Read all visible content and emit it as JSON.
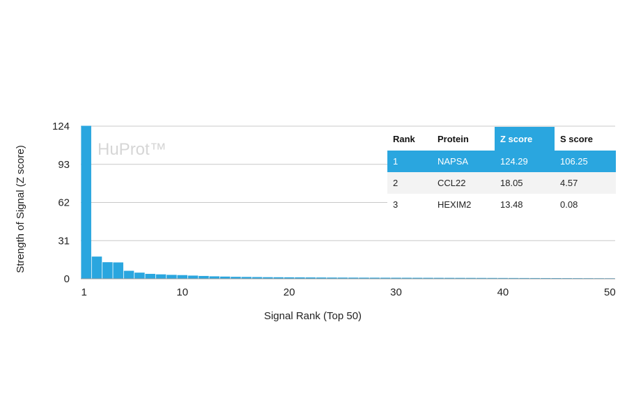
{
  "chart_data": {
    "type": "bar",
    "xlabel": "Signal Rank (Top 50)",
    "ylabel": "Strength of Signal (Z score)",
    "watermark": "HuProt™",
    "ylim": [
      0,
      124
    ],
    "yticks": [
      0,
      31,
      62,
      93,
      124
    ],
    "xticks": [
      1,
      10,
      20,
      30,
      40,
      50
    ],
    "grid": true,
    "bar_color": "#2aa6df",
    "x": [
      1,
      2,
      3,
      4,
      5,
      6,
      7,
      8,
      9,
      10,
      11,
      12,
      13,
      14,
      15,
      16,
      17,
      18,
      19,
      20,
      21,
      22,
      23,
      24,
      25,
      26,
      27,
      28,
      29,
      30,
      31,
      32,
      33,
      34,
      35,
      36,
      37,
      38,
      39,
      40,
      41,
      42,
      43,
      44,
      45,
      46,
      47,
      48,
      49,
      50
    ],
    "values": [
      124.29,
      18.05,
      13.48,
      13.3,
      6.5,
      5.0,
      4.0,
      3.6,
      3.2,
      3.0,
      2.6,
      2.3,
      2.0,
      1.8,
      1.6,
      1.5,
      1.4,
      1.3,
      1.25,
      1.2,
      1.15,
      1.1,
      1.05,
      1.0,
      0.98,
      0.95,
      0.92,
      0.9,
      0.88,
      0.86,
      0.84,
      0.82,
      0.8,
      0.78,
      0.76,
      0.74,
      0.72,
      0.7,
      0.68,
      0.66,
      0.64,
      0.62,
      0.6,
      0.58,
      0.56,
      0.54,
      0.52,
      0.5,
      0.48,
      0.46
    ],
    "table": {
      "headers": [
        "Rank",
        "Protein",
        "Z score",
        "S score"
      ],
      "highlight_header": 2,
      "rows": [
        [
          "1",
          "NAPSA",
          "124.29",
          "106.25"
        ],
        [
          "2",
          "CCL22",
          "18.05",
          "4.57"
        ],
        [
          "3",
          "HEXIM2",
          "13.48",
          "0.08"
        ]
      ]
    }
  }
}
